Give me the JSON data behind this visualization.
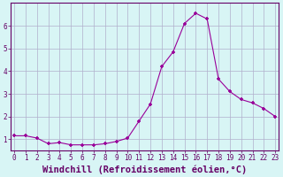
{
  "x": [
    0,
    1,
    2,
    3,
    4,
    5,
    6,
    7,
    8,
    9,
    10,
    11,
    12,
    13,
    14,
    15,
    16,
    17,
    18,
    19,
    20,
    21,
    22,
    23
  ],
  "y": [
    1.15,
    1.15,
    1.05,
    0.8,
    0.85,
    0.75,
    0.75,
    0.75,
    0.8,
    0.9,
    1.05,
    1.8,
    2.55,
    4.2,
    4.85,
    6.1,
    6.55,
    6.3,
    3.65,
    3.1,
    2.75,
    2.6,
    2.35,
    2.0
  ],
  "x_ticks": [
    0,
    1,
    2,
    3,
    4,
    5,
    6,
    7,
    8,
    9,
    10,
    11,
    12,
    13,
    14,
    15,
    16,
    17,
    18,
    19,
    20,
    21,
    22,
    23
  ],
  "y_ticks": [
    1,
    2,
    3,
    4,
    5,
    6
  ],
  "ylim": [
    0.5,
    7.0
  ],
  "xlim": [
    -0.3,
    23.3
  ],
  "xlabel": "Windchill (Refroidissement éolien,°C)",
  "line_color": "#990099",
  "marker": "+",
  "bg_color": "#d8f5f5",
  "grid_color": "#b0b0cc",
  "axis_color": "#660066",
  "tick_label_color": "#660066",
  "xlabel_color": "#660066",
  "tick_fontsize": 5.5,
  "xlabel_fontsize": 7.5
}
